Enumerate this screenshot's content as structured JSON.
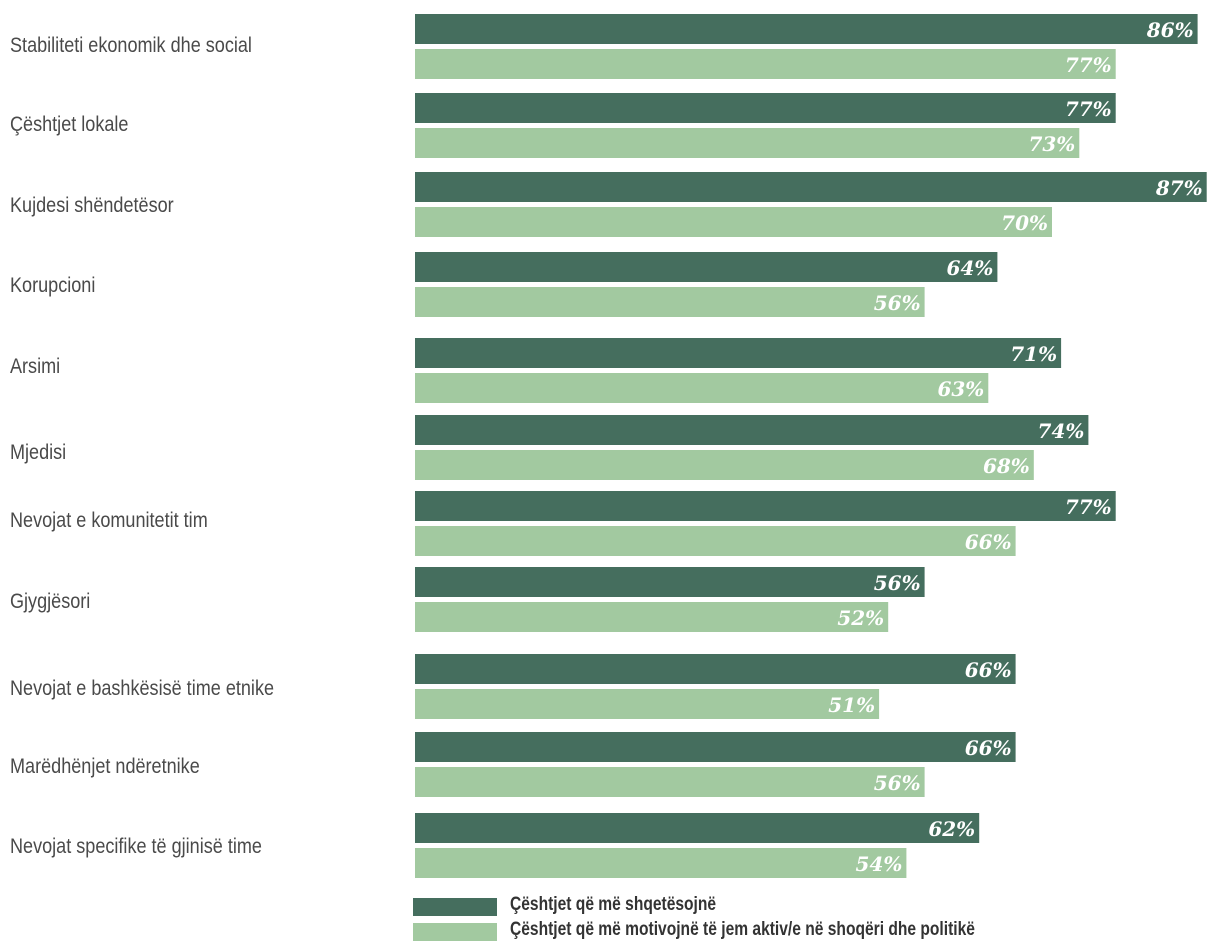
{
  "chart_data": {
    "type": "bar",
    "orientation": "horizontal",
    "categories": [
      "Stabiliteti ekonomik dhe social",
      "Çështjet lokale",
      "Kujdesi shëndetësor",
      "Korupcioni",
      "Arsimi",
      "Mjedisi",
      "Nevojat e komunitetit tim",
      "Gjygjësori",
      "Nevojat e bashkësisë time etnike",
      "Marëdhënjet ndëretnike",
      "Nevojat specifike të gjinisë time"
    ],
    "series": [
      {
        "name": "Çështjet që më shqetësojnë",
        "color": "#456e5e",
        "values": [
          86,
          77,
          87,
          64,
          71,
          74,
          77,
          56,
          66,
          66,
          62
        ],
        "labels": [
          "86%",
          "77%",
          "87%",
          "64%",
          "71%",
          "74%",
          "77%",
          "56%",
          "66%",
          "66%",
          "62%"
        ]
      },
      {
        "name": "Çështjet që më motivojnë të jem aktiv/e në shoqëri dhe politikë",
        "color": "#a2c9a0",
        "values": [
          77,
          73,
          70,
          56,
          63,
          68,
          66,
          52,
          51,
          56,
          54
        ],
        "labels": [
          "77%",
          "73%",
          "70%",
          "56%",
          "63%",
          "68%",
          "66%",
          "52%",
          "51%",
          "56%",
          "54%"
        ]
      }
    ],
    "xlim": [
      0,
      100
    ],
    "grid": false,
    "legend_position": "bottom"
  }
}
